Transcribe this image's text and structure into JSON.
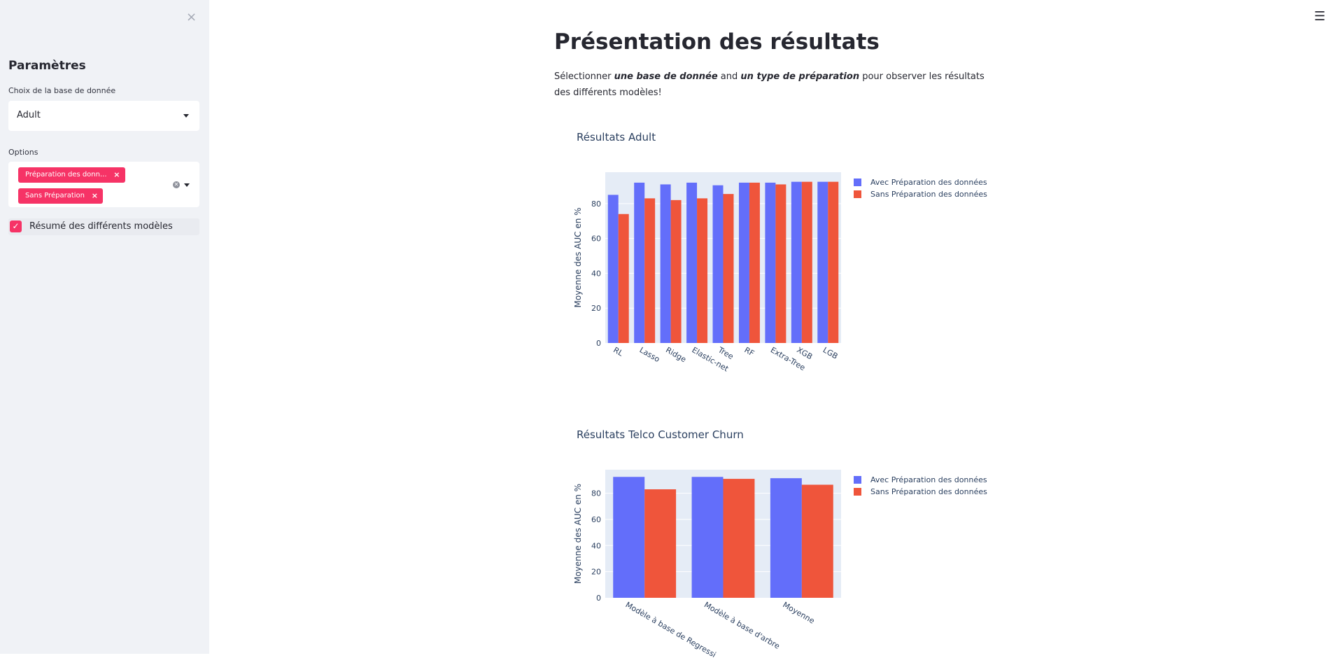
{
  "sidebar": {
    "close_glyph": "×",
    "title": "Paramètres",
    "database_label": "Choix de la base de donnée",
    "database_value": "Adult",
    "options_label": "Options",
    "options_tags": [
      "Préparation des donn...",
      "Sans Préparation"
    ],
    "tag_remove_glyph": "×",
    "checkbox_label": "Résumé des différents modèles",
    "checkbox_checked": true
  },
  "header": {
    "menu_glyph": "☰"
  },
  "main": {
    "title": "Présentation des résultats",
    "intro_1": "Sélectionner ",
    "intro_b1": "une base de donnée",
    "intro_2": " and ",
    "intro_b2": "un type de préparation",
    "intro_3": " pour observer les résultats des différents modèles!"
  },
  "colors": {
    "accent": "#f63366",
    "series_1": "#636efa",
    "series_2": "#ef553b",
    "plot_bg": "#e5ecf6"
  },
  "chart_data": [
    {
      "type": "bar",
      "title": "Résultats Adult",
      "ylabel": "Moyenne des AUC en %",
      "xlabel": "",
      "ylim": [
        0,
        98
      ],
      "yticks": [
        0,
        20,
        40,
        60,
        80
      ],
      "categories": [
        "RL",
        "Lasso",
        "Ridge",
        "Elastic-net",
        "Tree",
        "RF",
        "Extra-Tree",
        "XGB",
        "LGB"
      ],
      "series": [
        {
          "name": "Avec Préparation des données",
          "values": [
            85,
            92,
            91,
            92,
            90.5,
            92,
            92,
            92.5,
            92.5
          ]
        },
        {
          "name": "Sans Préparation des données",
          "values": [
            74,
            83,
            82,
            83,
            85.5,
            92,
            91,
            92.5,
            92.5
          ]
        }
      ],
      "legend": "right",
      "grid": true
    },
    {
      "type": "bar",
      "title": "Résultats Telco Customer Churn",
      "ylabel": "Moyenne des AUC en %",
      "xlabel": "",
      "ylim": [
        0,
        98
      ],
      "yticks": [
        0,
        20,
        40,
        60,
        80
      ],
      "categories": [
        "Modèle à base de Regressi",
        "Modèle à base d'arbre",
        "Moyenne"
      ],
      "series": [
        {
          "name": "Avec Préparation des données",
          "values": [
            92.5,
            92.5,
            91.5
          ]
        },
        {
          "name": "Sans Préparation des données",
          "values": [
            83,
            91,
            86.5
          ]
        }
      ],
      "legend": "right",
      "grid": true
    }
  ]
}
